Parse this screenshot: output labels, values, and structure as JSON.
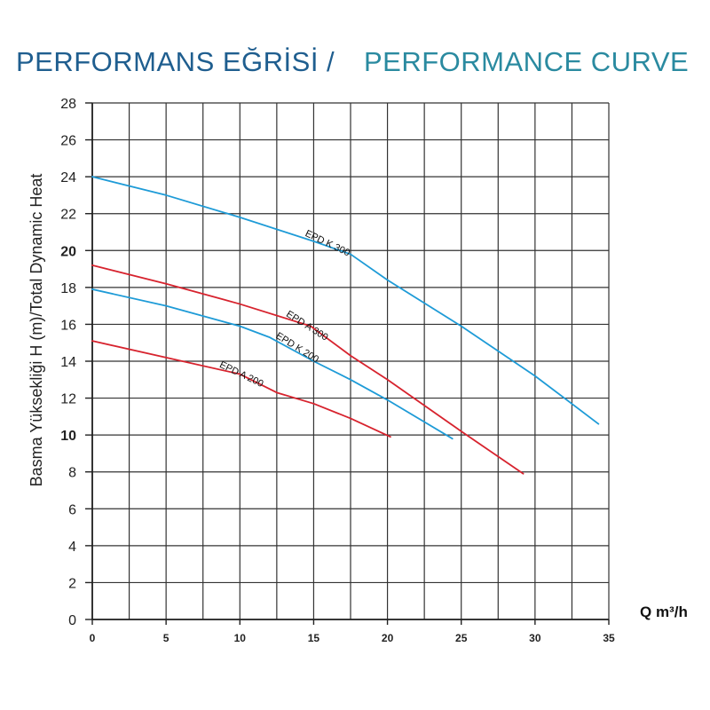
{
  "title_tr": "PERFORMANS EĞRİSİ /",
  "title_en": "PERFORMANCE CURVE",
  "chart_data": {
    "type": "line",
    "xlabel": "Q m³/h",
    "ylabel": "Basma Yüksekliği H (m)/Total Dynamic Heat",
    "xlim": [
      0,
      35
    ],
    "ylim": [
      0,
      28
    ],
    "grid": true,
    "x_ticks": [
      "0",
      "5",
      "10",
      "15",
      "20",
      "25",
      "30",
      "35"
    ],
    "y_ticks": [
      "0",
      "2",
      "4",
      "6",
      "8",
      "10",
      "12",
      "14",
      "16",
      "18",
      "20",
      "22",
      "24",
      "26",
      "28"
    ],
    "y_ticks_bold": [
      "10",
      "20"
    ],
    "series": [
      {
        "name": "EPD K 300",
        "color": "#1e9bd7",
        "x": [
          0,
          5,
          10,
          15,
          17.5,
          20,
          25,
          30,
          34.3
        ],
        "y": [
          24.0,
          23.0,
          21.8,
          20.5,
          19.8,
          18.4,
          15.9,
          13.2,
          10.6
        ]
      },
      {
        "name": "EPD A 300",
        "color": "#d7232e",
        "x": [
          0,
          5,
          10,
          14.8,
          17.5,
          20,
          22.5,
          25,
          29.2
        ],
        "y": [
          19.2,
          18.2,
          17.1,
          15.9,
          14.3,
          13.0,
          11.6,
          10.2,
          7.9
        ]
      },
      {
        "name": "EPD K 200",
        "color": "#1e9bd7",
        "x": [
          0,
          5,
          10,
          12,
          15,
          17.5,
          20,
          24.4
        ],
        "y": [
          17.9,
          17.0,
          15.9,
          15.3,
          14.0,
          13.0,
          11.9,
          9.8
        ]
      },
      {
        "name": "EPD A 200",
        "color": "#d7232e",
        "x": [
          0,
          5,
          10,
          12.5,
          15,
          17.5,
          20.2
        ],
        "y": [
          15.1,
          14.2,
          13.3,
          12.3,
          11.7,
          10.9,
          9.9
        ]
      }
    ]
  }
}
